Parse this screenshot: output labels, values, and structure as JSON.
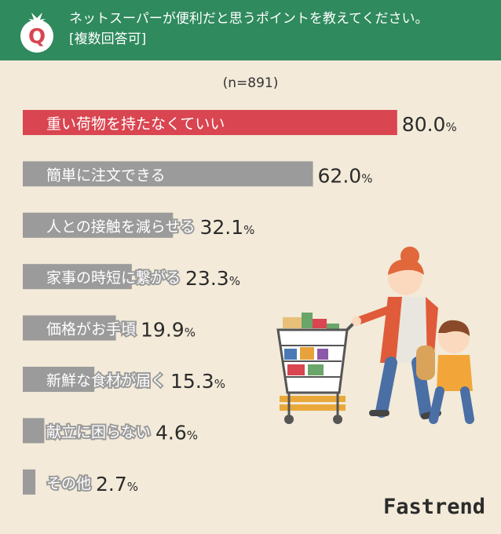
{
  "header": {
    "badge_letter": "Q",
    "question_line1": "ネットスーパーが便利だと思うポイントを教えてください。",
    "question_line2": "[複数回答可]"
  },
  "sample_size": "(n=891)",
  "brand": "Fastrend",
  "colors": {
    "header_bg": "#2f8a5e",
    "highlight_bar": "#d94550",
    "bar": "#9b9b9b",
    "background": "#f3ead9"
  },
  "chart_data": {
    "type": "bar",
    "orientation": "horizontal",
    "unit": "%",
    "categories": [
      "重い荷物を持たなくていい",
      "簡単に注文できる",
      "人との接触を減らせる",
      "家事の時短に繋がる",
      "価格がお手頃",
      "新鮮な食材が届く",
      "献立に困らない",
      "その他"
    ],
    "values": [
      80.0,
      62.0,
      32.1,
      23.3,
      19.9,
      15.3,
      4.6,
      2.7
    ],
    "value_labels": [
      "80.0",
      "62.0",
      "32.1",
      "23.3",
      "19.9",
      "15.3",
      "4.6",
      "2.7"
    ],
    "highlight_index": 0,
    "xlim": [
      0,
      100
    ]
  }
}
